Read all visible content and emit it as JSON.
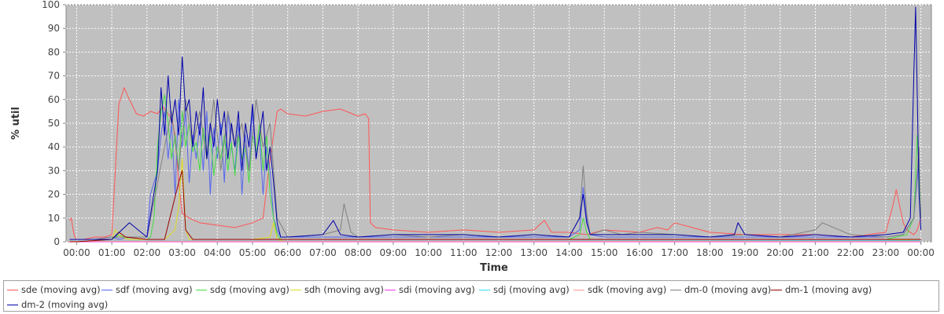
{
  "chart_data": {
    "type": "line",
    "title": "",
    "xlabel": "Time",
    "ylabel": "% util",
    "ylim": [
      0,
      100
    ],
    "yticks": [
      "0",
      "10",
      "20",
      "30",
      "40",
      "50",
      "60",
      "70",
      "80",
      "90",
      "100"
    ],
    "xlim": [
      -0.3,
      24.3
    ],
    "xticks": [
      "00:00",
      "01:00",
      "02:00",
      "03:00",
      "04:00",
      "05:00",
      "06:00",
      "07:00",
      "08:00",
      "09:00",
      "10:00",
      "11:00",
      "12:00",
      "13:00",
      "14:00",
      "15:00",
      "16:00",
      "17:00",
      "18:00",
      "19:00",
      "20:00",
      "21:00",
      "22:00",
      "23:00",
      "00:00"
    ],
    "grid": true,
    "legend_position": "bottom",
    "series": [
      {
        "name": "sde (moving avg)",
        "color": "#ff5555",
        "x": [
          -0.2,
          -0.15,
          -0.1,
          -0.05,
          0,
          0.2,
          0.5,
          0.8,
          1.0,
          1.1,
          1.2,
          1.35,
          1.5,
          1.7,
          1.9,
          2.1,
          2.3,
          2.45,
          2.55,
          2.7,
          2.8,
          2.9,
          3.0,
          3.2,
          3.5,
          4.0,
          4.5,
          5.0,
          5.3,
          5.5,
          5.7,
          5.8,
          6.0,
          6.5,
          7.0,
          7.5,
          8.0,
          8.2,
          8.3,
          8.35,
          8.5,
          9.0,
          10.0,
          11.0,
          12.0,
          13.0,
          13.3,
          13.5,
          14.0,
          14.5,
          15.0,
          16.0,
          16.5,
          16.8,
          17.0,
          18.0,
          19.0,
          20.0,
          21.0,
          22.0,
          22.5,
          23.0,
          23.2,
          23.3,
          23.5,
          23.6,
          23.7,
          23.8,
          23.9,
          24.0
        ],
        "y": [
          9,
          10,
          5,
          2,
          1,
          1,
          2,
          2,
          3,
          30,
          58,
          65,
          60,
          54,
          53,
          55,
          54,
          57,
          55,
          52,
          45,
          25,
          12,
          10,
          8,
          7,
          6,
          8,
          10,
          35,
          55,
          56,
          54,
          53,
          55,
          56,
          53,
          54,
          52,
          8,
          6,
          5,
          4,
          5,
          4,
          5,
          9,
          4,
          4,
          3,
          5,
          4,
          6,
          5,
          8,
          4,
          3,
          3,
          3,
          2,
          3,
          4,
          15,
          22,
          8,
          5,
          4,
          3,
          5,
          10
        ]
      },
      {
        "name": "sdf (moving avg)",
        "color": "#5566ee",
        "x": [
          -0.2,
          0,
          0.5,
          1.0,
          1.2,
          1.5,
          2.0,
          2.1,
          2.3,
          2.4,
          2.5,
          2.6,
          2.7,
          2.8,
          2.9,
          3.0,
          3.1,
          3.2,
          3.3,
          3.4,
          3.5,
          3.6,
          3.7,
          3.8,
          3.9,
          4.0,
          4.1,
          4.2,
          4.3,
          4.4,
          4.5,
          4.6,
          4.7,
          4.8,
          4.9,
          5.0,
          5.1,
          5.2,
          5.3,
          5.4,
          5.5,
          5.6,
          5.7,
          5.8,
          6.0,
          7.0,
          8.0,
          9.0,
          10.0,
          11.0,
          12.0,
          13.0,
          14.0,
          14.3,
          14.4,
          14.5,
          14.6,
          15.0,
          16.0,
          17.0,
          18.0,
          19.0,
          20.0,
          21.0,
          22.0,
          23.0,
          23.5,
          23.8,
          23.95,
          24.0
        ],
        "y": [
          1,
          1,
          1,
          2,
          1,
          2,
          2,
          20,
          30,
          45,
          55,
          35,
          50,
          20,
          60,
          40,
          55,
          25,
          45,
          35,
          50,
          30,
          55,
          20,
          48,
          35,
          50,
          25,
          55,
          40,
          30,
          50,
          20,
          45,
          30,
          55,
          35,
          45,
          20,
          40,
          30,
          10,
          5,
          2,
          2,
          2,
          2,
          2,
          2,
          2,
          2,
          2,
          2,
          5,
          23,
          10,
          3,
          2,
          2,
          2,
          2,
          2,
          2,
          2,
          2,
          2,
          3,
          10,
          35,
          10
        ]
      },
      {
        "name": "sdg (moving avg)",
        "color": "#44dd44",
        "x": [
          -0.2,
          0,
          1.0,
          1.2,
          1.5,
          2.0,
          2.1,
          2.2,
          2.3,
          2.4,
          2.5,
          2.6,
          2.7,
          2.8,
          2.9,
          3.0,
          3.1,
          3.2,
          3.3,
          3.4,
          3.5,
          3.6,
          3.7,
          3.8,
          3.9,
          4.0,
          4.1,
          4.2,
          4.3,
          4.4,
          4.5,
          4.6,
          4.7,
          4.8,
          4.9,
          5.0,
          5.1,
          5.2,
          5.3,
          5.4,
          5.5,
          5.6,
          5.7,
          5.8,
          6.0,
          8.0,
          10.0,
          12.0,
          14.0,
          14.3,
          14.4,
          14.5,
          14.6,
          15.0,
          18.0,
          21.0,
          23.0,
          23.6,
          23.8,
          23.9,
          24.0
        ],
        "y": [
          1,
          1,
          1,
          3,
          1,
          1,
          2,
          10,
          40,
          55,
          62,
          50,
          35,
          45,
          30,
          55,
          40,
          50,
          38,
          42,
          30,
          48,
          35,
          45,
          28,
          40,
          35,
          45,
          30,
          42,
          28,
          45,
          35,
          40,
          25,
          45,
          38,
          50,
          30,
          45,
          20,
          10,
          3,
          1,
          1,
          1,
          1,
          1,
          1,
          3,
          10,
          4,
          1,
          1,
          1,
          1,
          1,
          3,
          10,
          45,
          10
        ]
      },
      {
        "name": "sdh (moving avg)",
        "color": "#dddd22",
        "x": [
          -0.2,
          0,
          1.0,
          1.1,
          1.2,
          1.3,
          1.5,
          2.0,
          2.5,
          2.8,
          2.9,
          3.0,
          3.1,
          3.2,
          3.5,
          4.0,
          5.0,
          5.5,
          5.6,
          5.7,
          6.0,
          10.0,
          14.0,
          18.0,
          22.0,
          24.0
        ],
        "y": [
          0,
          0,
          1,
          5,
          3,
          2,
          1,
          1,
          1,
          5,
          15,
          35,
          5,
          1,
          1,
          1,
          1,
          2,
          8,
          1,
          0,
          0,
          0,
          0,
          0,
          1
        ]
      },
      {
        "name": "sdi (moving avg)",
        "color": "#ee33ee",
        "x": [
          -0.2,
          24.0
        ],
        "y": [
          0,
          0
        ]
      },
      {
        "name": "sdj (moving avg)",
        "color": "#33ddee",
        "x": [
          -0.2,
          12.0,
          24.0
        ],
        "y": [
          0.3,
          0.3,
          0.5
        ]
      },
      {
        "name": "sdk (moving avg)",
        "color": "#ff9999",
        "x": [
          -0.2,
          24.0
        ],
        "y": [
          0.2,
          0.2
        ]
      },
      {
        "name": "dm-0 (moving avg)",
        "color": "#808080",
        "x": [
          -0.2,
          0,
          0.5,
          1.0,
          2.0,
          2.5,
          2.7,
          2.9,
          3.1,
          3.3,
          3.5,
          3.7,
          3.9,
          4.1,
          4.3,
          4.5,
          4.7,
          4.9,
          5.1,
          5.3,
          5.5,
          5.7,
          6.0,
          7.0,
          7.5,
          7.6,
          7.8,
          8.0,
          9.0,
          10.0,
          11.0,
          12.0,
          13.0,
          14.0,
          14.3,
          14.4,
          14.5,
          14.6,
          15.0,
          15.5,
          16.0,
          17.0,
          18.0,
          19.0,
          20.0,
          21.0,
          21.2,
          22.0,
          23.0,
          23.5,
          23.8,
          23.95,
          24.0
        ],
        "y": [
          1,
          1,
          1,
          2,
          2,
          40,
          55,
          30,
          60,
          40,
          55,
          35,
          60,
          30,
          55,
          40,
          50,
          30,
          60,
          40,
          50,
          10,
          2,
          3,
          5,
          16,
          4,
          2,
          3,
          2,
          3,
          2,
          3,
          2,
          10,
          32,
          12,
          3,
          5,
          3,
          4,
          3,
          2,
          3,
          2,
          5,
          8,
          3,
          2,
          3,
          10,
          40,
          10
        ]
      },
      {
        "name": "dm-1 (moving avg)",
        "color": "#990000",
        "x": [
          -0.2,
          0,
          1.0,
          1.2,
          1.4,
          2.0,
          2.5,
          2.9,
          3.0,
          3.1,
          3.3,
          4.0,
          5.0,
          6.0,
          8.0,
          10.0,
          14.0,
          18.0,
          22.0,
          24.0
        ],
        "y": [
          0,
          0,
          1,
          4,
          2,
          1,
          1,
          25,
          30,
          5,
          1,
          1,
          1,
          1,
          1,
          1,
          1,
          1,
          1,
          1
        ]
      },
      {
        "name": "dm-2 (moving avg)",
        "color": "#0000aa",
        "x": [
          -0.2,
          0,
          1.0,
          1.5,
          2.0,
          2.3,
          2.4,
          2.5,
          2.6,
          2.7,
          2.8,
          2.9,
          3.0,
          3.1,
          3.2,
          3.3,
          3.4,
          3.5,
          3.6,
          3.7,
          3.8,
          3.9,
          4.0,
          4.1,
          4.2,
          4.3,
          4.4,
          4.5,
          4.6,
          4.7,
          4.8,
          4.9,
          5.0,
          5.1,
          5.2,
          5.3,
          5.4,
          5.5,
          5.6,
          5.7,
          5.8,
          6.0,
          7.0,
          7.3,
          7.5,
          8.0,
          9.0,
          10.0,
          11.0,
          12.0,
          13.0,
          14.0,
          14.3,
          14.4,
          14.5,
          14.6,
          15.0,
          16.0,
          17.0,
          18.0,
          18.7,
          18.8,
          19.0,
          20.0,
          21.0,
          22.0,
          23.0,
          23.5,
          23.7,
          23.8,
          23.85,
          23.9,
          23.95,
          24.0
        ],
        "y": [
          1,
          1,
          1,
          8,
          2,
          30,
          65,
          45,
          70,
          50,
          60,
          45,
          78,
          55,
          60,
          40,
          55,
          45,
          65,
          35,
          50,
          40,
          60,
          45,
          55,
          35,
          50,
          40,
          55,
          30,
          50,
          40,
          58,
          35,
          45,
          55,
          30,
          40,
          25,
          8,
          2,
          2,
          3,
          9,
          3,
          2,
          3,
          3,
          3,
          2,
          3,
          2,
          10,
          20,
          8,
          3,
          3,
          3,
          3,
          2,
          3,
          8,
          3,
          2,
          3,
          2,
          3,
          4,
          10,
          70,
          99,
          60,
          20,
          5
        ]
      }
    ]
  }
}
